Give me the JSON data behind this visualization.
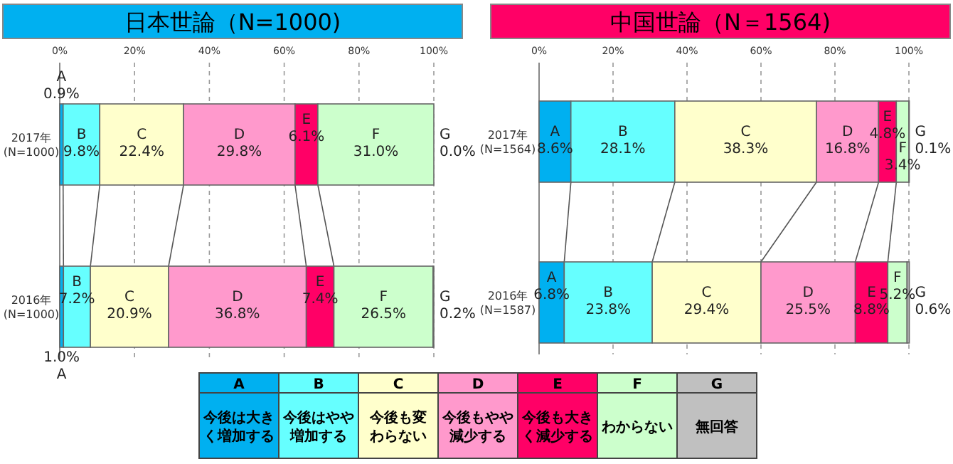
{
  "chart_data": [
    {
      "type": "bar",
      "title": "日本世論（N=1000)",
      "orientation": "horizontal",
      "stacked": true,
      "categories": [
        "2017年\n(N=1000)",
        "2016年\n(N=1000)"
      ],
      "xlim": [
        0,
        100
      ],
      "xticks": [
        {
          "value": 0,
          "label": "0%"
        },
        {
          "value": 20,
          "label": "20%"
        },
        {
          "value": 40,
          "label": "40%"
        },
        {
          "value": 60,
          "label": "60%"
        },
        {
          "value": 80,
          "label": "80%"
        },
        {
          "value": 100,
          "label": "100%"
        }
      ],
      "grid": "x",
      "series": [
        {
          "name": "A",
          "color": "#00b0f0",
          "values": [
            0.9,
            1.0
          ],
          "value_labels": [
            "0.9%",
            "1.0%"
          ]
        },
        {
          "name": "B",
          "color": "#66ffff",
          "values": [
            9.8,
            7.2
          ],
          "value_labels": [
            "9.8%",
            "7.2%"
          ]
        },
        {
          "name": "C",
          "color": "#ffffcc",
          "values": [
            22.4,
            20.9
          ],
          "value_labels": [
            "22.4%",
            "20.9%"
          ]
        },
        {
          "name": "D",
          "color": "#ff99cc",
          "values": [
            29.8,
            36.8
          ],
          "value_labels": [
            "29.8%",
            "36.8%"
          ]
        },
        {
          "name": "E",
          "color": "#ff0066",
          "values": [
            6.1,
            7.4
          ],
          "value_labels": [
            "6.1%",
            "7.4%"
          ]
        },
        {
          "name": "F",
          "color": "#ccffcc",
          "values": [
            31.0,
            26.5
          ],
          "value_labels": [
            "31.0%",
            "26.5%"
          ]
        },
        {
          "name": "G",
          "color": "#c0c0c0",
          "values": [
            0.0,
            0.2
          ],
          "value_labels": [
            "0.0%",
            "0.2%"
          ]
        }
      ]
    },
    {
      "type": "bar",
      "title": "中国世論（N＝1564)",
      "orientation": "horizontal",
      "stacked": true,
      "categories": [
        "2017年\n(N=1564)",
        "2016年\n(N=1587)"
      ],
      "xlim": [
        0,
        100
      ],
      "xticks": [
        {
          "value": 0,
          "label": "0%"
        },
        {
          "value": 20,
          "label": "20%"
        },
        {
          "value": 40,
          "label": "40%"
        },
        {
          "value": 60,
          "label": "60%"
        },
        {
          "value": 80,
          "label": "80%"
        },
        {
          "value": 100,
          "label": "100%"
        }
      ],
      "grid": "x",
      "series": [
        {
          "name": "A",
          "color": "#00b0f0",
          "values": [
            8.6,
            6.8
          ],
          "value_labels": [
            "8.6%",
            "6.8%"
          ]
        },
        {
          "name": "B",
          "color": "#66ffff",
          "values": [
            28.1,
            23.8
          ],
          "value_labels": [
            "28.1%",
            "23.8%"
          ]
        },
        {
          "name": "C",
          "color": "#ffffcc",
          "values": [
            38.3,
            29.4
          ],
          "value_labels": [
            "38.3%",
            "29.4%"
          ]
        },
        {
          "name": "D",
          "color": "#ff99cc",
          "values": [
            16.8,
            25.5
          ],
          "value_labels": [
            "16.8%",
            "25.5%"
          ]
        },
        {
          "name": "E",
          "color": "#ff0066",
          "values": [
            4.8,
            8.8
          ],
          "value_labels": [
            "4.8%",
            "8.8%"
          ]
        },
        {
          "name": "F",
          "color": "#ccffcc",
          "values": [
            3.4,
            5.2
          ],
          "value_labels": [
            "3.4%",
            "5.2%"
          ]
        },
        {
          "name": "G",
          "color": "#c0c0c0",
          "values": [
            0.1,
            0.6
          ],
          "value_labels": [
            "0.1%",
            "0.6%"
          ]
        }
      ]
    },
    {
      "type": "other",
      "categories": [
        "A",
        "B",
        "C",
        "D",
        "E",
        "F",
        "G"
      ],
      "colors": [
        "#00b0f0",
        "#66ffff",
        "#ffffcc",
        "#ff99cc",
        "#ff0066",
        "#ccffcc",
        "#c0c0c0"
      ],
      "annotations": [
        "今後は大きく増加する",
        "今後はやや増加する",
        "今後も変わらない",
        "今後もやや減少する",
        "今後も大きく減少する",
        "わからない",
        "無回答"
      ]
    }
  ]
}
